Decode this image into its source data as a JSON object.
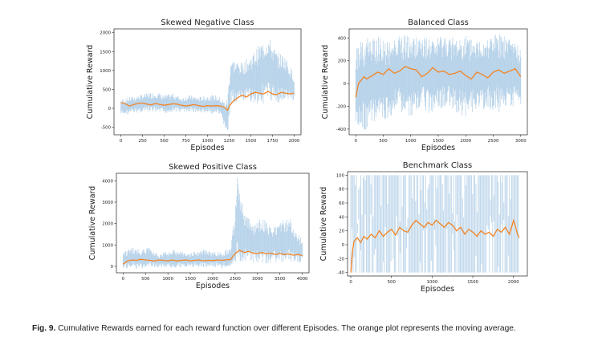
{
  "caption": {
    "label": "Fig. 9.",
    "text": "Cumulative Rewards earned for each reward function over different Episodes. The orange plot represents the moving average."
  },
  "colors": {
    "raw": "#aecde6",
    "moving_average": "#f28424",
    "axis": "#222222"
  },
  "chart_data": [
    {
      "type": "line",
      "title": "Skewed Negative Class",
      "xlabel": "Episodes",
      "ylabel": "Cumulative Reward",
      "xlim": [
        -80,
        2080
      ],
      "ylim": [
        -700,
        2100
      ],
      "xticks": [
        0,
        250,
        500,
        750,
        1000,
        1250,
        1500,
        1750,
        2000
      ],
      "yticks": [
        -500,
        0,
        500,
        1000,
        1500,
        2000
      ],
      "series": [
        {
          "role": "raw",
          "x": [
            0,
            100,
            200,
            300,
            400,
            500,
            600,
            700,
            800,
            900,
            1000,
            1100,
            1150,
            1200,
            1230,
            1270,
            1300,
            1400,
            1500,
            1600,
            1700,
            1800,
            1900,
            2000
          ],
          "y_low": [
            -200,
            -150,
            -120,
            -100,
            -120,
            -150,
            -100,
            -100,
            -100,
            -120,
            -150,
            -150,
            -250,
            -500,
            -800,
            0,
            150,
            150,
            150,
            100,
            150,
            150,
            150,
            200
          ],
          "y_high": [
            250,
            300,
            350,
            400,
            450,
            350,
            400,
            300,
            350,
            300,
            350,
            350,
            300,
            200,
            300,
            1400,
            1300,
            1200,
            1400,
            1700,
            1950,
            1500,
            1400,
            900
          ]
        },
        {
          "role": "moving_average",
          "x": [
            0,
            50,
            100,
            150,
            200,
            250,
            300,
            350,
            400,
            450,
            500,
            550,
            600,
            650,
            700,
            750,
            800,
            850,
            900,
            950,
            1000,
            1050,
            1100,
            1150,
            1200,
            1230,
            1260,
            1300,
            1350,
            1400,
            1450,
            1500,
            1550,
            1600,
            1650,
            1700,
            1750,
            1800,
            1850,
            1900,
            1950,
            2000
          ],
          "y": [
            150,
            120,
            60,
            100,
            130,
            140,
            110,
            90,
            130,
            100,
            80,
            100,
            120,
            110,
            80,
            60,
            80,
            100,
            70,
            50,
            70,
            60,
            70,
            60,
            20,
            -50,
            80,
            200,
            280,
            350,
            300,
            380,
            420,
            400,
            380,
            450,
            380,
            360,
            420,
            400,
            380,
            400
          ]
        }
      ]
    },
    {
      "type": "line",
      "title": "Balanced Class",
      "xlabel": "Episodes",
      "ylabel": "Cumulative Reward",
      "xlim": [
        -120,
        3120
      ],
      "ylim": [
        -450,
        480
      ],
      "xticks": [
        0,
        500,
        1000,
        1500,
        2000,
        2500,
        3000
      ],
      "yticks": [
        -400,
        -200,
        0,
        200,
        400
      ],
      "series": [
        {
          "role": "raw",
          "x": [
            0,
            200,
            400,
            600,
            800,
            1000,
            1200,
            1400,
            1600,
            1800,
            2000,
            2200,
            2400,
            2600,
            2800,
            3000
          ],
          "y_low": [
            -400,
            -420,
            -350,
            -300,
            -250,
            -300,
            -220,
            -280,
            -200,
            -250,
            -300,
            -220,
            -230,
            -250,
            -200,
            -200
          ],
          "y_high": [
            350,
            400,
            420,
            380,
            450,
            400,
            420,
            380,
            430,
            400,
            420,
            380,
            420,
            440,
            400,
            330
          ]
        },
        {
          "role": "moving_average",
          "x": [
            0,
            50,
            100,
            150,
            200,
            300,
            400,
            500,
            600,
            700,
            800,
            900,
            1000,
            1100,
            1200,
            1300,
            1400,
            1500,
            1600,
            1700,
            1800,
            1900,
            2000,
            2100,
            2200,
            2300,
            2400,
            2500,
            2600,
            2700,
            2800,
            2900,
            3000
          ],
          "y": [
            -120,
            0,
            30,
            60,
            40,
            70,
            100,
            80,
            130,
            90,
            110,
            150,
            130,
            120,
            60,
            90,
            140,
            100,
            110,
            80,
            90,
            110,
            70,
            40,
            100,
            80,
            50,
            100,
            120,
            90,
            110,
            130,
            60
          ]
        }
      ]
    },
    {
      "type": "line",
      "title": "Skewed Positive Class",
      "xlabel": "Episodes",
      "ylabel": "Cumulative Reward",
      "xlim": [
        -150,
        4150
      ],
      "ylim": [
        -300,
        4350
      ],
      "xticks": [
        0,
        500,
        1000,
        1500,
        2000,
        2500,
        3000,
        3500,
        4000
      ],
      "yticks": [
        0,
        1000,
        2000,
        3000,
        4000
      ],
      "series": [
        {
          "role": "raw",
          "x": [
            0,
            200,
            400,
            600,
            800,
            1000,
            1200,
            1400,
            1600,
            1800,
            2000,
            2200,
            2400,
            2500,
            2550,
            2700,
            2900,
            3100,
            3300,
            3500,
            3700,
            3900,
            4000
          ],
          "y_low": [
            -100,
            -100,
            -150,
            -100,
            -50,
            -50,
            -100,
            -50,
            -50,
            -50,
            -50,
            -100,
            -50,
            100,
            200,
            200,
            150,
            100,
            150,
            200,
            150,
            100,
            200
          ],
          "y_high": [
            700,
            900,
            800,
            900,
            600,
            700,
            800,
            600,
            700,
            800,
            700,
            700,
            900,
            2500,
            4200,
            2600,
            2000,
            2400,
            1800,
            2200,
            2300,
            1600,
            1200
          ]
        },
        {
          "role": "moving_average",
          "x": [
            0,
            100,
            200,
            300,
            400,
            500,
            600,
            700,
            800,
            900,
            1000,
            1100,
            1200,
            1300,
            1400,
            1500,
            1600,
            1700,
            1800,
            1900,
            2000,
            2100,
            2200,
            2300,
            2400,
            2500,
            2600,
            2700,
            2800,
            2900,
            3000,
            3100,
            3200,
            3300,
            3400,
            3500,
            3600,
            3700,
            3800,
            3900,
            4000
          ],
          "y": [
            100,
            250,
            300,
            280,
            330,
            300,
            280,
            250,
            300,
            280,
            260,
            300,
            250,
            280,
            300,
            260,
            280,
            300,
            260,
            280,
            270,
            300,
            280,
            300,
            320,
            600,
            750,
            650,
            700,
            620,
            600,
            650,
            580,
            620,
            560,
            600,
            550,
            580,
            520,
            560,
            500
          ]
        }
      ]
    },
    {
      "type": "line",
      "title": "Benchmark Class",
      "xlabel": "Episodes",
      "ylabel": "Cumulative Reward",
      "xlim": [
        -40,
        2170
      ],
      "ylim": [
        -45,
        105
      ],
      "xticks": [
        0,
        500,
        1000,
        1500,
        2000
      ],
      "yticks": [
        -40,
        -20,
        0,
        20,
        40,
        60,
        80,
        100
      ],
      "series": [
        {
          "role": "raw",
          "x": [
            0,
            2060
          ],
          "y_low": [
            -40,
            -40
          ],
          "y_high": [
            100,
            100
          ]
        },
        {
          "role": "moving_average",
          "x": [
            0,
            20,
            40,
            80,
            120,
            160,
            200,
            250,
            300,
            350,
            400,
            450,
            500,
            550,
            600,
            650,
            700,
            750,
            800,
            850,
            900,
            950,
            1000,
            1050,
            1100,
            1150,
            1200,
            1250,
            1300,
            1350,
            1400,
            1450,
            1500,
            1550,
            1600,
            1650,
            1700,
            1750,
            1800,
            1850,
            1900,
            1950,
            2000,
            2020,
            2050,
            2070
          ],
          "y": [
            -40,
            -10,
            5,
            10,
            3,
            12,
            8,
            15,
            10,
            20,
            12,
            18,
            22,
            14,
            25,
            20,
            18,
            28,
            35,
            30,
            25,
            32,
            28,
            35,
            30,
            25,
            32,
            28,
            20,
            25,
            15,
            22,
            18,
            12,
            20,
            15,
            18,
            12,
            22,
            18,
            25,
            15,
            35,
            28,
            15,
            10
          ]
        }
      ]
    }
  ]
}
